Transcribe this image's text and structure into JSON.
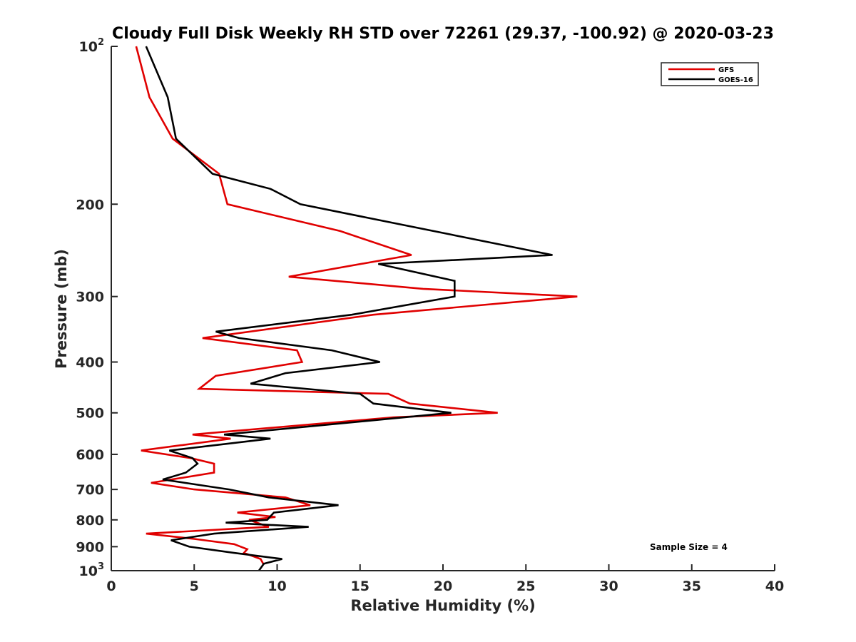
{
  "chart_data": {
    "type": "line",
    "title": "Cloudy Full Disk Weekly RH STD over 72261 (29.37, -100.92) @ 2020-03-23",
    "xlabel": "Relative Humidity (%)",
    "ylabel": "Pressure (mb)",
    "xlim": [
      0,
      40
    ],
    "ylim": [
      100,
      1000
    ],
    "y_scale": "log",
    "y_reversed": true,
    "x_ticks": [
      "0",
      "5",
      "10",
      "15",
      "20",
      "25",
      "30",
      "35",
      "40"
    ],
    "y_ticks": [
      {
        "value": 100,
        "base": "10",
        "exp": "2"
      },
      {
        "value": 200,
        "label": "200"
      },
      {
        "value": 300,
        "label": "300"
      },
      {
        "value": 400,
        "label": "400"
      },
      {
        "value": 500,
        "label": "500"
      },
      {
        "value": 600,
        "label": "600"
      },
      {
        "value": 700,
        "label": "700"
      },
      {
        "value": 800,
        "label": "800"
      },
      {
        "value": 900,
        "label": "900"
      },
      {
        "value": 1000,
        "base": "10",
        "exp": "3"
      }
    ],
    "legend_position": "top-right",
    "annotation": "Sample Size = 4",
    "series": [
      {
        "name": "GFS",
        "color": "#e00000",
        "points": [
          [
            1.5,
            100
          ],
          [
            2.3,
            125
          ],
          [
            3.7,
            150
          ],
          [
            6.5,
            175
          ],
          [
            7.0,
            200
          ],
          [
            13.8,
            225
          ],
          [
            18.1,
            250
          ],
          [
            10.7,
            275
          ],
          [
            18.8,
            290
          ],
          [
            28.1,
            300
          ],
          [
            15.8,
            325
          ],
          [
            5.5,
            360
          ],
          [
            11.2,
            380
          ],
          [
            11.5,
            400
          ],
          [
            6.3,
            425
          ],
          [
            5.3,
            450
          ],
          [
            16.7,
            460
          ],
          [
            18.0,
            480
          ],
          [
            23.3,
            500
          ],
          [
            17.0,
            510
          ],
          [
            4.9,
            550
          ],
          [
            7.2,
            560
          ],
          [
            1.8,
            590
          ],
          [
            4.8,
            610
          ],
          [
            6.2,
            625
          ],
          [
            6.2,
            650
          ],
          [
            2.4,
            680
          ],
          [
            5.0,
            700
          ],
          [
            10.5,
            725
          ],
          [
            12.0,
            750
          ],
          [
            7.6,
            775
          ],
          [
            9.9,
            790
          ],
          [
            8.3,
            800
          ],
          [
            9.5,
            825
          ],
          [
            2.1,
            850
          ],
          [
            5.0,
            870
          ],
          [
            7.4,
            890
          ],
          [
            8.2,
            910
          ],
          [
            8.0,
            925
          ],
          [
            9.0,
            950
          ],
          [
            9.2,
            975
          ]
        ]
      },
      {
        "name": "GOES-16",
        "color": "#000000",
        "points": [
          [
            2.1,
            100
          ],
          [
            3.4,
            125
          ],
          [
            3.9,
            150
          ],
          [
            6.1,
            175
          ],
          [
            9.6,
            187
          ],
          [
            11.4,
            200
          ],
          [
            26.6,
            250
          ],
          [
            16.1,
            260
          ],
          [
            20.7,
            280
          ],
          [
            20.7,
            300
          ],
          [
            14.5,
            325
          ],
          [
            6.3,
            350
          ],
          [
            7.7,
            360
          ],
          [
            13.3,
            380
          ],
          [
            16.2,
            400
          ],
          [
            10.5,
            420
          ],
          [
            8.4,
            440
          ],
          [
            15.0,
            460
          ],
          [
            15.8,
            480
          ],
          [
            20.5,
            500
          ],
          [
            6.8,
            550
          ],
          [
            9.6,
            560
          ],
          [
            3.5,
            590
          ],
          [
            4.9,
            610
          ],
          [
            5.2,
            625
          ],
          [
            4.5,
            650
          ],
          [
            3.1,
            670
          ],
          [
            5.8,
            690
          ],
          [
            7.1,
            700
          ],
          [
            9.5,
            725
          ],
          [
            13.7,
            750
          ],
          [
            9.8,
            775
          ],
          [
            9.4,
            800
          ],
          [
            6.9,
            810
          ],
          [
            11.9,
            825
          ],
          [
            6.2,
            850
          ],
          [
            3.6,
            875
          ],
          [
            4.7,
            900
          ],
          [
            7.4,
            925
          ],
          [
            10.3,
            950
          ],
          [
            9.2,
            970
          ],
          [
            8.9,
            1000
          ]
        ]
      }
    ]
  }
}
